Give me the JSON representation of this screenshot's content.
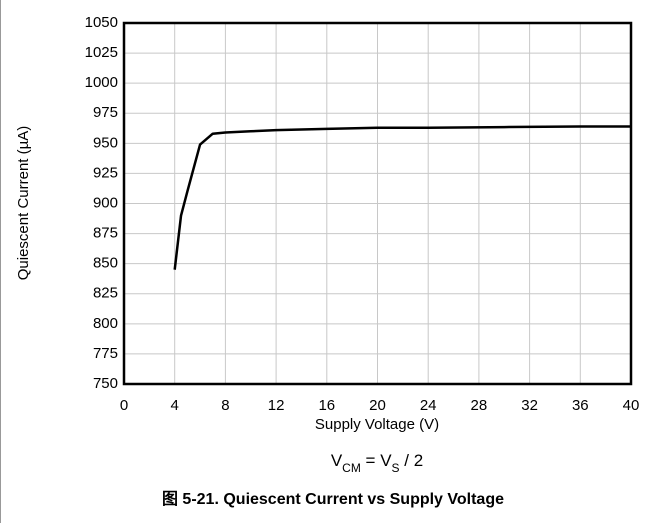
{
  "chart_data": {
    "type": "line",
    "x_label": "Supply Voltage (V)",
    "y_label": "Quiescent Current (µA)",
    "annotation": [
      "V",
      "CM",
      " = V",
      "S",
      " / 2"
    ],
    "caption": "图 5-21. Quiescent Current vs Supply Voltage",
    "xlim": [
      0,
      40
    ],
    "xticks": [
      0,
      4,
      8,
      12,
      16,
      20,
      24,
      28,
      32,
      36,
      40
    ],
    "ylim": [
      750,
      1050
    ],
    "yticks": [
      750,
      775,
      800,
      825,
      850,
      875,
      900,
      925,
      950,
      975,
      1000,
      1025,
      1050
    ],
    "grid": true,
    "series": [
      {
        "color": "#000000",
        "x": [
          4,
          4.5,
          5,
          6,
          7,
          8,
          10,
          12,
          14,
          16,
          20,
          24,
          30,
          36,
          40
        ],
        "values": [
          845,
          890,
          910,
          949,
          958,
          959,
          960,
          961,
          961.5,
          962,
          963,
          963,
          963.5,
          964,
          964
        ]
      }
    ]
  }
}
